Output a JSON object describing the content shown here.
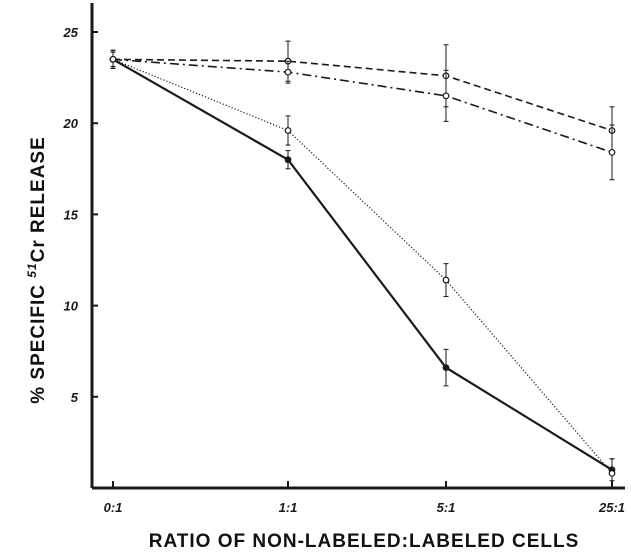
{
  "chart_data": {
    "type": "line",
    "title": "",
    "xlabel": "RATIO OF NON-LABELED:LABELED CELLS",
    "ylabel": {
      "prefix": "% SPECIFIC ",
      "superscript": "51",
      "suffix": "Cr RELEASE"
    },
    "categories": [
      "0:1",
      "1:1",
      "5:1",
      "25:1"
    ],
    "ylim": [
      0,
      25
    ],
    "yticks": [
      "5",
      "10",
      "15",
      "20",
      "25"
    ],
    "grid": false,
    "legend": "none",
    "series": [
      {
        "style": "solid",
        "marker": "filled-circle",
        "values": [
          23.5,
          18.0,
          6.6,
          1.0
        ],
        "errors": [
          0.4,
          0.5,
          1.0,
          0.6
        ]
      },
      {
        "style": "dotted",
        "marker": "open-circle",
        "values": [
          23.5,
          19.6,
          11.4,
          0.8
        ],
        "errors": [
          0.4,
          0.8,
          0.9,
          0.8
        ]
      },
      {
        "style": "dashed",
        "marker": "open-circle",
        "values": [
          23.5,
          23.4,
          22.6,
          19.6
        ],
        "errors": [
          0.5,
          1.1,
          1.7,
          1.3
        ]
      },
      {
        "style": "dash-dot",
        "marker": "open-circle",
        "values": [
          23.5,
          22.8,
          21.5,
          18.4
        ],
        "errors": [
          0.5,
          0.6,
          1.4,
          1.5
        ]
      }
    ],
    "colors": {
      "ink": "#1a1a1a",
      "background": "#ffffff"
    }
  }
}
